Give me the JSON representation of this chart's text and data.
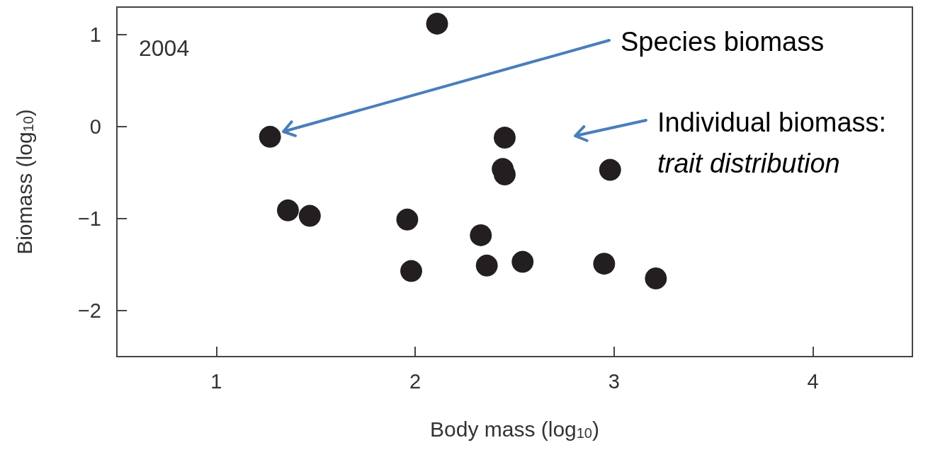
{
  "chart_data": {
    "type": "scatter",
    "xlabel": "Body mass (log$_{10}$)",
    "ylabel": "Biomass (log$_{10}$)",
    "annotations": [
      "2004",
      "Species biomass",
      "Individual biomass:",
      "trait distribution"
    ],
    "series": [
      {
        "color": "#231f20",
        "x": [
          2.11,
          1.27,
          1.36,
          1.47,
          1.96,
          1.98,
          2.33,
          2.36,
          2.45,
          2.44,
          2.45,
          2.54,
          2.95,
          2.98,
          3.21
        ],
        "values": [
          1.12,
          -0.11,
          -0.91,
          -0.97,
          -1.01,
          -1.57,
          -1.18,
          -1.51,
          -0.12,
          -0.46,
          -0.52,
          -1.47,
          -1.49,
          -0.47,
          -1.65
        ]
      }
    ],
    "xlim": [
      0.5,
      4.5
    ],
    "ylim": [
      -2.5,
      1.3
    ],
    "xticks": [
      1,
      2,
      3,
      4
    ],
    "yticks": [
      1,
      0,
      {
        "value": -1,
        "label": "−1"
      },
      {
        "value": -2,
        "label": "−2"
      }
    ],
    "marker": "circle",
    "grid": false
  }
}
